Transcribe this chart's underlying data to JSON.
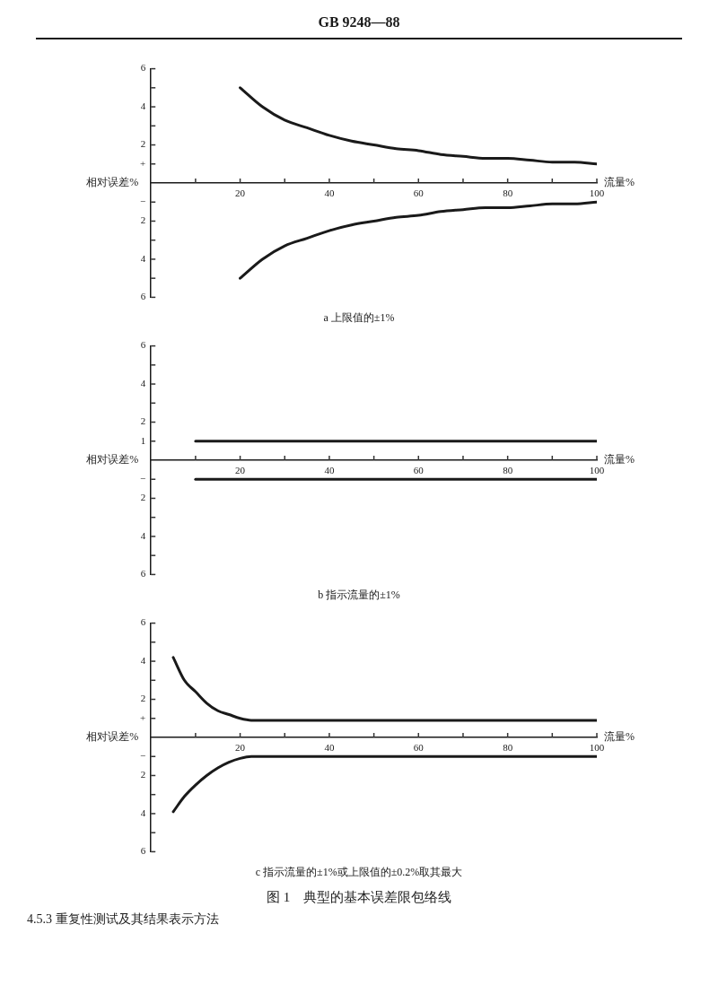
{
  "chart_data": [
    {
      "type": "line",
      "title": "a 上限值的±1%",
      "xlabel": "流量%",
      "ylabel": "相对误差%",
      "annotations": [
        "GB 9248—88"
      ],
      "xlim": [
        0,
        100
      ],
      "ylim": [
        -6,
        6
      ],
      "xticks": [
        {
          "value": 10,
          "label": null
        },
        20,
        {
          "value": 30,
          "label": null
        },
        40,
        {
          "value": 50,
          "label": null
        },
        60,
        {
          "value": 70,
          "label": null
        },
        80,
        {
          "value": 90,
          "label": null
        },
        100
      ],
      "yticks": [
        {
          "value": 6,
          "label": "6"
        },
        {
          "value": 5,
          "label": null
        },
        {
          "value": 4,
          "label": "4"
        },
        {
          "value": 3,
          "label": null
        },
        {
          "value": 2,
          "label": "2"
        },
        {
          "value": 1,
          "label": "+"
        },
        {
          "value": -1,
          "label": "−"
        },
        {
          "value": -2,
          "label": "2"
        },
        {
          "value": -3,
          "label": null
        },
        {
          "value": -4,
          "label": "4"
        },
        {
          "value": -5,
          "label": null
        },
        {
          "value": -6,
          "label": "6"
        }
      ],
      "grid": false,
      "legend": false,
      "marker": "none",
      "line_style": "solid",
      "x": [
        20,
        25,
        30,
        35,
        40,
        45,
        50,
        55,
        60,
        65,
        70,
        75,
        80,
        85,
        90,
        95,
        100
      ],
      "series": [
        {
          "color": "#1a1a1a",
          "values": [
            5.0,
            4.0,
            3.3,
            2.9,
            2.5,
            2.2,
            2.0,
            1.8,
            1.7,
            1.5,
            1.4,
            1.3,
            1.3,
            1.2,
            1.1,
            1.1,
            1.0
          ]
        },
        {
          "color": "#1a1a1a",
          "values": [
            -5.0,
            -4.0,
            -3.3,
            -2.9,
            -2.5,
            -2.2,
            -2.0,
            -1.8,
            -1.7,
            -1.5,
            -1.4,
            -1.3,
            -1.3,
            -1.2,
            -1.1,
            -1.1,
            -1.0
          ]
        }
      ]
    },
    {
      "type": "line",
      "title": "b 指示流量的±1%",
      "xlabel": "流量%",
      "ylabel": "相对误差%",
      "xlim": [
        0,
        100
      ],
      "ylim": [
        -6,
        6
      ],
      "xticks": [
        {
          "value": 10,
          "label": null
        },
        20,
        {
          "value": 30,
          "label": null
        },
        40,
        {
          "value": 50,
          "label": null
        },
        60,
        {
          "value": 70,
          "label": null
        },
        80,
        {
          "value": 90,
          "label": null
        },
        100
      ],
      "yticks": [
        {
          "value": 6,
          "label": "6"
        },
        {
          "value": 5,
          "label": null
        },
        {
          "value": 4,
          "label": "4"
        },
        {
          "value": 3,
          "label": null
        },
        {
          "value": 2,
          "label": "2"
        },
        {
          "value": 1,
          "label": "1"
        },
        {
          "value": -1,
          "label": "−"
        },
        {
          "value": -2,
          "label": "2"
        },
        {
          "value": -3,
          "label": null
        },
        {
          "value": -4,
          "label": "4"
        },
        {
          "value": -5,
          "label": null
        },
        {
          "value": -6,
          "label": "6"
        }
      ],
      "grid": false,
      "legend": false,
      "marker": "none",
      "line_style": "solid",
      "x": [
        10,
        100
      ],
      "series": [
        {
          "color": "#1a1a1a",
          "values": [
            1.0,
            1.0
          ]
        },
        {
          "color": "#1a1a1a",
          "values": [
            -1.0,
            -1.0
          ]
        }
      ]
    },
    {
      "type": "line",
      "title": "c 指示流量的±1%或上限值的±0.2%取其最大",
      "xlabel": "流量%",
      "ylabel": "相对误差%",
      "annotations": [
        "图 1　典型的基本误差限包络线",
        "4.5.3 重复性测试及其结果表示方法"
      ],
      "xlim": [
        0,
        100
      ],
      "ylim": [
        -6,
        6
      ],
      "xticks": [
        {
          "value": 10,
          "label": null
        },
        20,
        {
          "value": 30,
          "label": null
        },
        40,
        {
          "value": 50,
          "label": null
        },
        60,
        {
          "value": 70,
          "label": null
        },
        80,
        {
          "value": 90,
          "label": null
        },
        100
      ],
      "yticks": [
        {
          "value": 6,
          "label": "6"
        },
        {
          "value": 5,
          "label": null
        },
        {
          "value": 4,
          "label": "4"
        },
        {
          "value": 3,
          "label": null
        },
        {
          "value": 2,
          "label": "2"
        },
        {
          "value": 1,
          "label": "+"
        },
        {
          "value": -1,
          "label": "−"
        },
        {
          "value": -2,
          "label": "2"
        },
        {
          "value": -3,
          "label": null
        },
        {
          "value": -4,
          "label": "4"
        },
        {
          "value": -5,
          "label": null
        },
        {
          "value": -6,
          "label": "6"
        }
      ],
      "grid": false,
      "legend": false,
      "marker": "none",
      "line_style": "solid",
      "x": [
        5,
        7.5,
        10,
        12.5,
        15,
        17.5,
        20,
        22.5,
        25,
        40,
        60,
        80,
        100
      ],
      "series": [
        {
          "color": "#1a1a1a",
          "values": [
            4.2,
            3.0,
            2.4,
            1.8,
            1.4,
            1.2,
            1.0,
            0.9,
            0.9,
            0.9,
            0.9,
            0.9,
            0.9
          ]
        },
        {
          "color": "#1a1a1a",
          "values": [
            -3.9,
            -3.1,
            -2.5,
            -2.0,
            -1.6,
            -1.3,
            -1.1,
            -1.0,
            -1.0,
            -1.0,
            -1.0,
            -1.0,
            -1.0
          ]
        }
      ]
    }
  ]
}
